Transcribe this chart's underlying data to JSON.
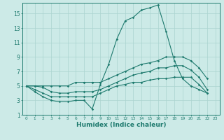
{
  "xlabel": "Humidex (Indice chaleur)",
  "background_color": "#cceae7",
  "grid_color": "#aad4d0",
  "line_color": "#1e7a6e",
  "xlim": [
    -0.5,
    23.5
  ],
  "ylim": [
    1,
    16.5
  ],
  "xticks": [
    0,
    1,
    2,
    3,
    4,
    5,
    6,
    7,
    8,
    9,
    10,
    11,
    12,
    13,
    14,
    15,
    16,
    17,
    18,
    19,
    20,
    21,
    22,
    23
  ],
  "yticks": [
    1,
    3,
    5,
    7,
    9,
    11,
    13,
    15
  ],
  "series1_x": [
    0,
    1,
    2,
    3,
    4,
    5,
    6,
    7,
    8,
    9,
    10,
    11,
    12,
    13,
    14,
    15,
    16,
    17,
    18,
    19,
    20,
    21,
    22
  ],
  "series1_y": [
    5.0,
    4.2,
    3.5,
    3.0,
    2.8,
    2.8,
    3.0,
    3.0,
    1.8,
    5.2,
    8.0,
    11.5,
    14.0,
    14.5,
    15.5,
    15.8,
    16.2,
    12.5,
    8.5,
    6.0,
    5.0,
    4.5,
    4.0
  ],
  "series2_x": [
    0,
    1,
    2,
    3,
    4,
    5,
    6,
    7,
    8,
    9,
    10,
    11,
    12,
    13,
    14,
    15,
    16,
    17,
    18,
    19,
    20,
    21,
    22
  ],
  "series2_y": [
    5.0,
    4.5,
    4.0,
    3.5,
    3.5,
    3.5,
    3.5,
    3.5,
    3.5,
    4.0,
    4.5,
    5.0,
    5.2,
    5.5,
    5.5,
    5.8,
    6.0,
    6.0,
    6.2,
    6.2,
    6.2,
    5.2,
    4.0
  ],
  "series3_x": [
    0,
    1,
    2,
    3,
    4,
    5,
    6,
    7,
    8,
    9,
    10,
    11,
    12,
    13,
    14,
    15,
    16,
    17,
    18,
    19,
    20,
    21,
    22
  ],
  "series3_y": [
    5.0,
    5.0,
    4.8,
    4.2,
    4.0,
    4.0,
    4.2,
    4.2,
    4.2,
    4.5,
    5.0,
    5.5,
    6.0,
    6.5,
    6.8,
    7.0,
    7.5,
    7.5,
    7.8,
    7.8,
    7.2,
    6.2,
    4.5
  ],
  "series4_x": [
    0,
    1,
    2,
    3,
    4,
    5,
    6,
    7,
    8,
    9,
    10,
    11,
    12,
    13,
    14,
    15,
    16,
    17,
    18,
    19,
    20,
    21,
    22
  ],
  "series4_y": [
    5.0,
    5.0,
    5.0,
    5.0,
    5.0,
    5.0,
    5.5,
    5.5,
    5.5,
    5.5,
    6.0,
    6.5,
    7.0,
    7.5,
    8.0,
    8.2,
    8.5,
    9.0,
    9.0,
    9.0,
    8.5,
    7.5,
    6.0
  ]
}
